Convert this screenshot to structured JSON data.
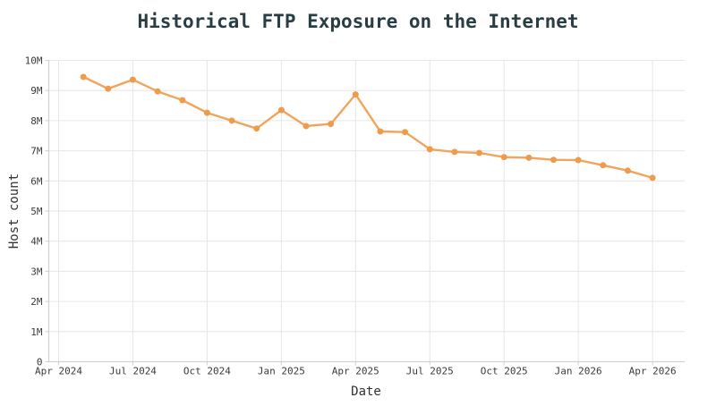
{
  "chart_data": {
    "type": "line",
    "title": "Historical FTP Exposure on the Internet",
    "xlabel": "Date",
    "ylabel": "Host count",
    "x_tick_labels": [
      "Apr 2024",
      "Jul 2024",
      "Oct 2024",
      "Jan 2025",
      "Apr 2025",
      "Jul 2025",
      "Oct 2025",
      "Jan 2026",
      "Apr 2026"
    ],
    "y_tick_labels": [
      "0",
      "1M",
      "2M",
      "3M",
      "4M",
      "5M",
      "6M",
      "7M",
      "8M",
      "9M",
      "10M"
    ],
    "ylim": [
      0,
      10000000
    ],
    "x_months_per_tick": 3,
    "grid": true,
    "legend": "none",
    "colors": {
      "line": "#f1a45c",
      "marker": "#ee9c4b",
      "title": "#283e44",
      "axis_title": "#333333",
      "tick_label": "#3a3a3a",
      "grid": "#e6e6e6",
      "axis": "#d2d2d2"
    },
    "series": [
      {
        "points": [
          {
            "date": "May 2024",
            "month_offset": 1,
            "value": 9450000
          },
          {
            "date": "Jun 2024",
            "month_offset": 2,
            "value": 9060000
          },
          {
            "date": "Jul 2024",
            "month_offset": 3,
            "value": 9360000
          },
          {
            "date": "Aug 2024",
            "month_offset": 4,
            "value": 8970000
          },
          {
            "date": "Sep 2024",
            "month_offset": 5,
            "value": 8680000
          },
          {
            "date": "Oct 2024",
            "month_offset": 6,
            "value": 8260000
          },
          {
            "date": "Nov 2024",
            "month_offset": 7,
            "value": 8000000
          },
          {
            "date": "Dec 2024",
            "month_offset": 8,
            "value": 7740000
          },
          {
            "date": "Jan 2025",
            "month_offset": 9,
            "value": 8350000
          },
          {
            "date": "Feb 2025",
            "month_offset": 10,
            "value": 7820000
          },
          {
            "date": "Mar 2025",
            "month_offset": 11,
            "value": 7890000
          },
          {
            "date": "Apr 2025",
            "month_offset": 12,
            "value": 8870000
          },
          {
            "date": "May 2025",
            "month_offset": 13,
            "value": 7640000
          },
          {
            "date": "Jun 2025",
            "month_offset": 14,
            "value": 7620000
          },
          {
            "date": "Jul 2025",
            "month_offset": 15,
            "value": 7050000
          },
          {
            "date": "Aug 2025",
            "month_offset": 16,
            "value": 6960000
          },
          {
            "date": "Sep 2025",
            "month_offset": 17,
            "value": 6930000
          },
          {
            "date": "Oct 2025",
            "month_offset": 18,
            "value": 6790000
          },
          {
            "date": "Nov 2025",
            "month_offset": 19,
            "value": 6770000
          },
          {
            "date": "Dec 2025",
            "month_offset": 20,
            "value": 6700000
          },
          {
            "date": "Jan 2026",
            "month_offset": 21,
            "value": 6690000
          },
          {
            "date": "Feb 2026",
            "month_offset": 22,
            "value": 6520000
          },
          {
            "date": "Mar 2026",
            "month_offset": 23,
            "value": 6340000
          },
          {
            "date": "Apr 2026",
            "month_offset": 24,
            "value": 6100000
          }
        ]
      }
    ]
  }
}
